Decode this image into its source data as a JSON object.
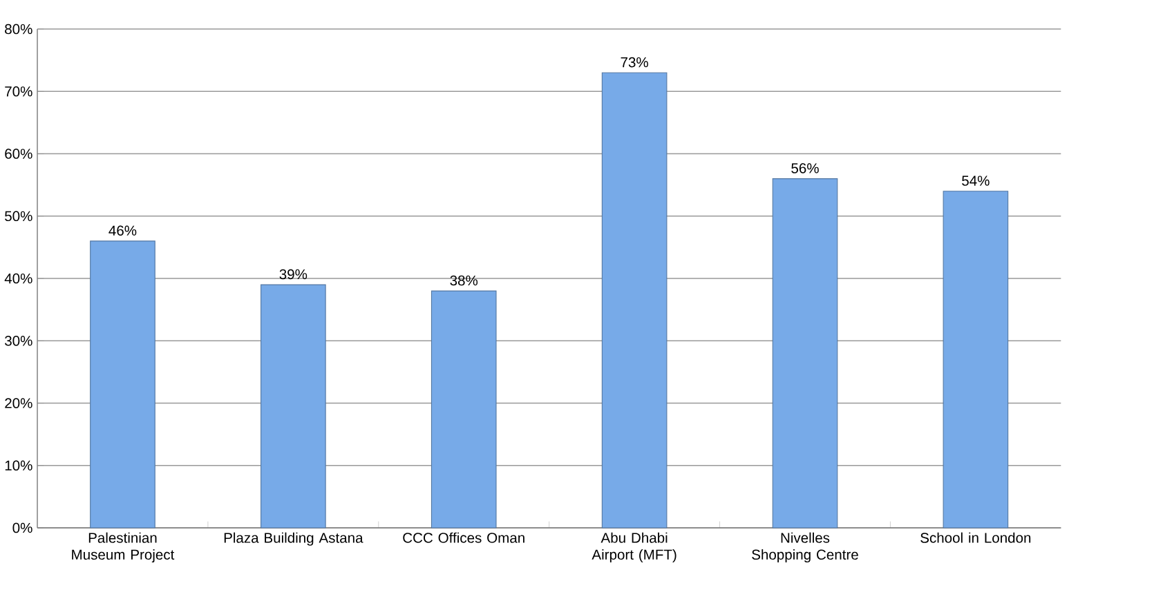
{
  "chart_data": {
    "type": "bar",
    "categories": [
      "Palestinian Museum Project",
      "Plaza Building  Astana",
      "CCC Offices Oman",
      "Abu Dhabi Airport (MFT)",
      "Nivelles Shopping Centre",
      "School in London"
    ],
    "values": [
      46,
      39,
      38,
      73,
      56,
      54
    ],
    "value_labels": [
      "46%",
      "39%",
      "38%",
      "73%",
      "56%",
      "54%"
    ],
    "color": "#77aae8",
    "ylim": [
      0,
      80
    ],
    "yticks": [
      {
        "value": 0,
        "label": "0%"
      },
      {
        "value": 10,
        "label": "10%"
      },
      {
        "value": 20,
        "label": "20%"
      },
      {
        "value": 30,
        "label": "30%"
      },
      {
        "value": 40,
        "label": "40%"
      },
      {
        "value": 50,
        "label": "50%"
      },
      {
        "value": 60,
        "label": "60%"
      },
      {
        "value": 70,
        "label": "70%"
      },
      {
        "value": 80,
        "label": "80%"
      }
    ],
    "grid": "y"
  }
}
